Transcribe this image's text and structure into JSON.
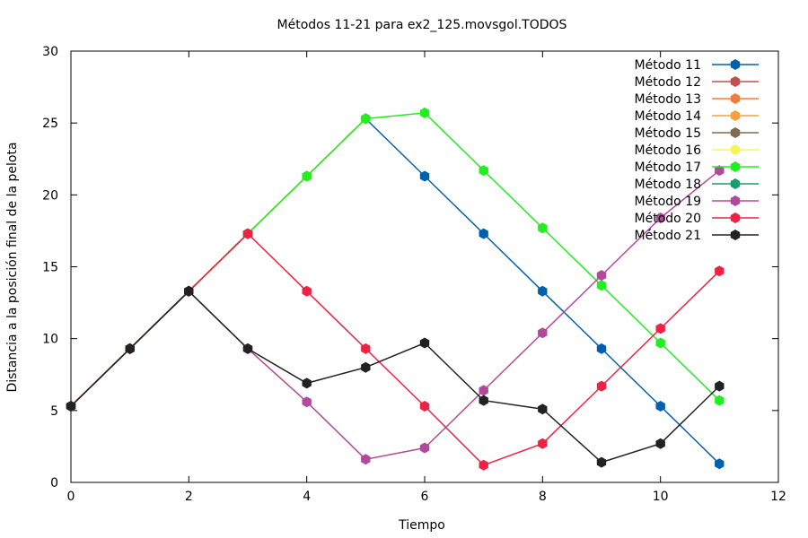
{
  "chart_data": {
    "type": "line",
    "title": "Métodos 11-21 para ex2_125.movsgol.TODOS",
    "xlabel": "Tiempo",
    "ylabel": "Distancia a la posición final de la pelota",
    "xlim": [
      0,
      12
    ],
    "ylim": [
      0,
      30
    ],
    "xticks": [
      0,
      2,
      4,
      6,
      8,
      10,
      12
    ],
    "yticks": [
      0,
      5,
      10,
      15,
      20,
      25,
      30
    ],
    "grid": false,
    "legend_position": "top-right",
    "series": [
      {
        "name": "Método 11",
        "color": "#0060ad",
        "points": [
          [
            0,
            5.3
          ],
          [
            1,
            9.3
          ],
          [
            2,
            13.3
          ],
          [
            3,
            17.3
          ],
          [
            4,
            21.3
          ],
          [
            5,
            25.3
          ],
          [
            6,
            21.3
          ],
          [
            7,
            17.3
          ],
          [
            8,
            13.3
          ],
          [
            9,
            9.3
          ],
          [
            10,
            5.3
          ],
          [
            11,
            1.3
          ]
        ]
      },
      {
        "name": "Método 12",
        "color": "#c0504d",
        "points": [
          [
            0,
            5.3
          ],
          [
            1,
            9.3
          ],
          [
            2,
            13.3
          ],
          [
            3,
            17.3
          ],
          [
            4,
            21.3
          ],
          [
            5,
            25.3
          ]
        ]
      },
      {
        "name": "Método 13",
        "color": "#f07d3c",
        "points": [
          [
            0,
            5.3
          ],
          [
            1,
            9.3
          ],
          [
            2,
            13.3
          ],
          [
            3,
            17.3
          ],
          [
            4,
            21.3
          ],
          [
            5,
            25.3
          ]
        ]
      },
      {
        "name": "Método 14",
        "color": "#f5a23c",
        "points": [
          [
            0,
            5.3
          ],
          [
            1,
            9.3
          ],
          [
            2,
            13.3
          ],
          [
            3,
            17.3
          ],
          [
            4,
            21.3
          ],
          [
            5,
            25.3
          ]
        ]
      },
      {
        "name": "Método 15",
        "color": "#7f6b4f",
        "points": [
          [
            0,
            5.3
          ],
          [
            1,
            9.3
          ],
          [
            2,
            13.3
          ],
          [
            3,
            17.3
          ],
          [
            4,
            21.3
          ],
          [
            5,
            25.3
          ]
        ]
      },
      {
        "name": "Método 16",
        "color": "#f5f55a",
        "points": [
          [
            0,
            5.3
          ],
          [
            1,
            9.3
          ],
          [
            2,
            13.3
          ],
          [
            3,
            17.3
          ],
          [
            4,
            21.3
          ],
          [
            5,
            25.3
          ]
        ]
      },
      {
        "name": "Método 17",
        "color": "#22ee22",
        "points": [
          [
            0,
            5.3
          ],
          [
            1,
            9.3
          ],
          [
            2,
            13.3
          ],
          [
            3,
            17.3
          ],
          [
            4,
            21.3
          ],
          [
            5,
            25.3
          ],
          [
            6,
            25.7
          ],
          [
            7,
            21.7
          ],
          [
            8,
            17.7
          ],
          [
            9,
            13.7
          ],
          [
            10,
            9.7
          ],
          [
            11,
            5.7
          ]
        ]
      },
      {
        "name": "Método 18",
        "color": "#1a9c6e",
        "points": [
          [
            0,
            5.3
          ],
          [
            1,
            9.3
          ],
          [
            2,
            13.3
          ],
          [
            3,
            17.3
          ]
        ]
      },
      {
        "name": "Método 19",
        "color": "#b04a9c",
        "points": [
          [
            0,
            5.3
          ],
          [
            1,
            9.3
          ],
          [
            2,
            13.3
          ],
          [
            3,
            9.3
          ],
          [
            4,
            5.6
          ],
          [
            5,
            1.6
          ],
          [
            6,
            2.4
          ],
          [
            7,
            6.4
          ],
          [
            8,
            10.4
          ],
          [
            9,
            14.4
          ],
          [
            10,
            18.4
          ],
          [
            11,
            21.7
          ]
        ]
      },
      {
        "name": "Método 20",
        "color": "#ee2244",
        "points": [
          [
            0,
            5.3
          ],
          [
            1,
            9.3
          ],
          [
            2,
            13.3
          ],
          [
            3,
            17.3
          ],
          [
            4,
            13.3
          ],
          [
            5,
            9.3
          ],
          [
            6,
            5.3
          ],
          [
            7,
            1.2
          ],
          [
            8,
            2.7
          ],
          [
            9,
            6.7
          ],
          [
            10,
            10.7
          ],
          [
            11,
            14.7
          ]
        ]
      },
      {
        "name": "Método 21",
        "color": "#222222",
        "points": [
          [
            0,
            5.3
          ],
          [
            1,
            9.3
          ],
          [
            2,
            13.3
          ],
          [
            3,
            9.3
          ],
          [
            4,
            6.9
          ],
          [
            5,
            8.0
          ],
          [
            6,
            9.7
          ],
          [
            7,
            5.7
          ],
          [
            8,
            5.1
          ],
          [
            9,
            1.4
          ],
          [
            10,
            2.7
          ],
          [
            11,
            6.7
          ]
        ]
      }
    ]
  }
}
